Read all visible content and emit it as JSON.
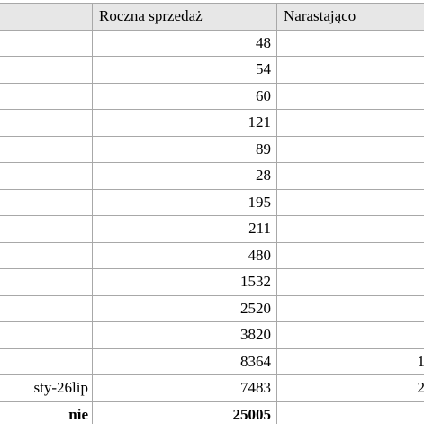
{
  "table": {
    "headers": [
      "",
      "Roczna sprzedaż",
      "Narastająco"
    ],
    "rows": [
      {
        "label": "",
        "value": "48",
        "cumulative": ""
      },
      {
        "label": "",
        "value": "54",
        "cumulative": ""
      },
      {
        "label": "",
        "value": "60",
        "cumulative": ""
      },
      {
        "label": "",
        "value": "121",
        "cumulative": ""
      },
      {
        "label": "",
        "value": "89",
        "cumulative": ""
      },
      {
        "label": "",
        "value": "28",
        "cumulative": ""
      },
      {
        "label": "",
        "value": "195",
        "cumulative": ""
      },
      {
        "label": "",
        "value": "211",
        "cumulative": ""
      },
      {
        "label": "",
        "value": "480",
        "cumulative": ""
      },
      {
        "label": "",
        "value": "1532",
        "cumulative": ""
      },
      {
        "label": "",
        "value": "2520",
        "cumulative": ""
      },
      {
        "label": "",
        "value": "3820",
        "cumulative": ""
      },
      {
        "label": "",
        "value": "8364",
        "cumulative": "1"
      },
      {
        "label": "sty-26lip",
        "value": "7483",
        "cumulative": "2"
      }
    ],
    "total": {
      "label": "nie",
      "value": "25005",
      "cumulative": ""
    }
  }
}
